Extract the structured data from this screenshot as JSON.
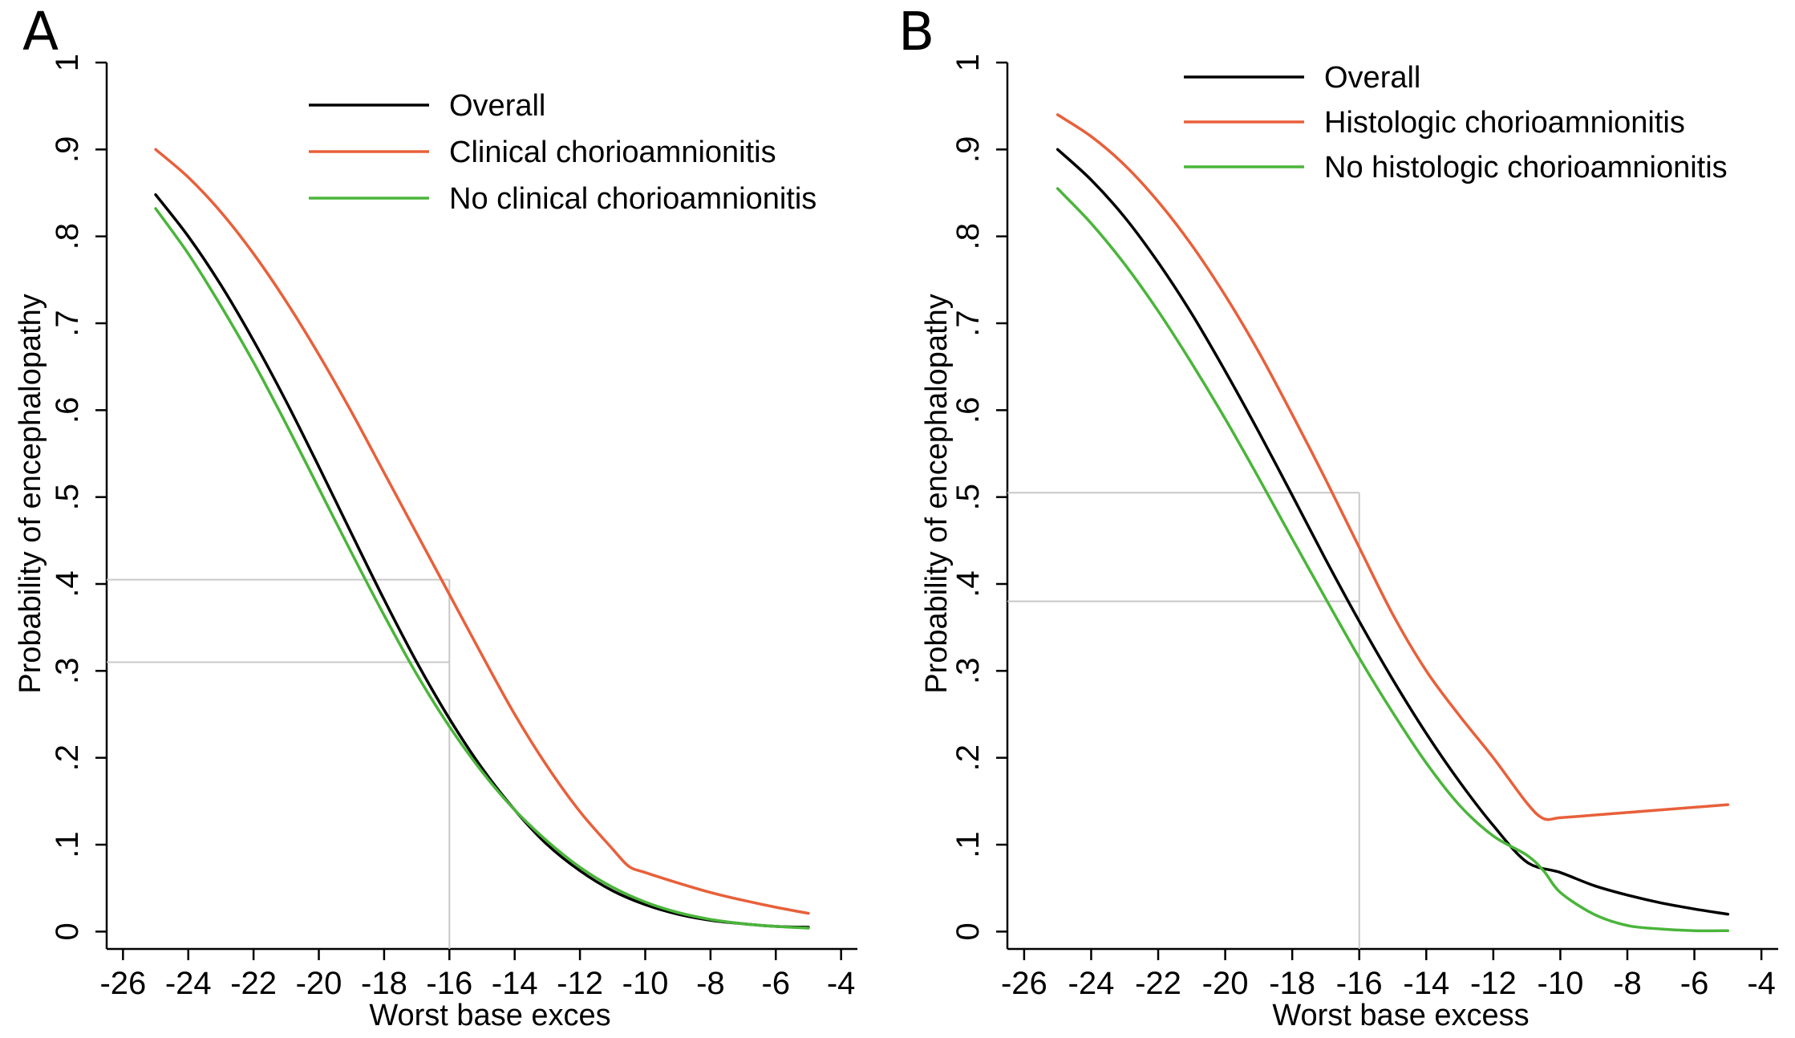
{
  "panels": [
    {
      "letter": "A"
    },
    {
      "letter": "B"
    }
  ],
  "chart_data": [
    {
      "type": "line",
      "panel": "A",
      "title": "",
      "xlabel": "Worst base exces",
      "ylabel": "Probability of encephalopathy",
      "xlim": [
        -26.5,
        -3.5
      ],
      "ylim": [
        -0.02,
        1.0
      ],
      "xticks": [
        -26,
        -24,
        -22,
        -20,
        -18,
        -16,
        -14,
        -12,
        -10,
        -8,
        -6,
        -4
      ],
      "xtick_labels": [
        "-26",
        "-24",
        "-22",
        "-20",
        "-18",
        "-16",
        "-14",
        "-12",
        "-10",
        "-8",
        "-6",
        "-4"
      ],
      "yticks": [
        0,
        0.1,
        0.2,
        0.3,
        0.4,
        0.5,
        0.6,
        0.7,
        0.8,
        0.9,
        1
      ],
      "ytick_labels": [
        "0",
        ".1",
        ".2",
        ".3",
        ".4",
        ".5",
        ".6",
        ".7",
        ".8",
        ".9",
        "1"
      ],
      "legend_position": "top-right",
      "reference_lines": {
        "vertical_x": -16,
        "horizontal_y": [
          0.405,
          0.31
        ]
      },
      "series": [
        {
          "name": "Overall",
          "color": "#000000",
          "x": [
            -25,
            -24,
            -23,
            -22,
            -21,
            -20,
            -19,
            -18,
            -17,
            -16,
            -15,
            -14,
            -13,
            -12,
            -11,
            -10,
            -9,
            -8,
            -7,
            -6,
            -5
          ],
          "y": [
            0.848,
            0.8,
            0.744,
            0.68,
            0.61,
            0.535,
            0.458,
            0.382,
            0.31,
            0.245,
            0.188,
            0.14,
            0.1,
            0.07,
            0.047,
            0.031,
            0.02,
            0.013,
            0.009,
            0.006,
            0.005
          ]
        },
        {
          "name": "Clinical chorioamnionitis",
          "color": "#e8603a",
          "x": [
            -25,
            -24,
            -23,
            -22,
            -21,
            -20,
            -19,
            -18,
            -17,
            -16,
            -15,
            -14,
            -13,
            -12,
            -11,
            -10.5,
            -10,
            -9,
            -8,
            -7,
            -6,
            -5
          ],
          "y": [
            0.9,
            0.868,
            0.828,
            0.78,
            0.725,
            0.664,
            0.598,
            0.528,
            0.458,
            0.388,
            0.318,
            0.25,
            0.19,
            0.138,
            0.095,
            0.075,
            0.068,
            0.056,
            0.045,
            0.036,
            0.028,
            0.021
          ]
        },
        {
          "name": "No clinical chorioamnionitis",
          "color": "#4ab53a",
          "x": [
            -25,
            -24,
            -23,
            -22,
            -21,
            -20,
            -19,
            -18,
            -17,
            -16,
            -15,
            -14,
            -13,
            -12,
            -11,
            -10,
            -9,
            -8,
            -7,
            -6,
            -5
          ],
          "y": [
            0.832,
            0.78,
            0.72,
            0.655,
            0.584,
            0.51,
            0.436,
            0.364,
            0.296,
            0.236,
            0.184,
            0.14,
            0.104,
            0.074,
            0.051,
            0.034,
            0.022,
            0.014,
            0.009,
            0.006,
            0.004
          ]
        }
      ]
    },
    {
      "type": "line",
      "panel": "B",
      "title": "",
      "xlabel": "Worst base excess",
      "ylabel": "Probability of encephalopathy",
      "xlim": [
        -26.5,
        -3.5
      ],
      "ylim": [
        -0.02,
        1.0
      ],
      "xticks": [
        -26,
        -24,
        -22,
        -20,
        -18,
        -16,
        -14,
        -12,
        -10,
        -8,
        -6,
        -4
      ],
      "xtick_labels": [
        "-26",
        "-24",
        "-22",
        "-20",
        "-18",
        "-16",
        "-14",
        "-12",
        "-10",
        "-8",
        "-6",
        "-4"
      ],
      "yticks": [
        0,
        0.1,
        0.2,
        0.3,
        0.4,
        0.5,
        0.6,
        0.7,
        0.8,
        0.9,
        1
      ],
      "ytick_labels": [
        "0",
        ".1",
        ".2",
        ".3",
        ".4",
        ".5",
        ".6",
        ".7",
        ".8",
        ".9",
        "1"
      ],
      "legend_position": "top-right",
      "reference_lines": {
        "vertical_x": -16,
        "horizontal_y": [
          0.505,
          0.38
        ]
      },
      "series": [
        {
          "name": "Overall",
          "color": "#000000",
          "x": [
            -25,
            -24,
            -23,
            -22,
            -21,
            -20,
            -19,
            -18,
            -17,
            -16,
            -15,
            -14,
            -13,
            -12,
            -11,
            -10,
            -9,
            -8,
            -7,
            -6,
            -5
          ],
          "y": [
            0.9,
            0.865,
            0.822,
            0.77,
            0.711,
            0.645,
            0.575,
            0.502,
            0.428,
            0.357,
            0.29,
            0.228,
            0.172,
            0.122,
            0.08,
            0.068,
            0.053,
            0.042,
            0.033,
            0.026,
            0.02
          ]
        },
        {
          "name": "Histologic chorioamnionitis",
          "color": "#e8603a",
          "x": [
            -25,
            -24,
            -23,
            -22,
            -21,
            -20,
            -19,
            -18,
            -17,
            -16,
            -15,
            -14,
            -13,
            -12,
            -11,
            -10.5,
            -10,
            -9,
            -8,
            -7,
            -6,
            -5
          ],
          "y": [
            0.94,
            0.915,
            0.882,
            0.84,
            0.79,
            0.732,
            0.667,
            0.595,
            0.52,
            0.442,
            0.365,
            0.3,
            0.248,
            0.2,
            0.148,
            0.13,
            0.131,
            0.134,
            0.137,
            0.14,
            0.143,
            0.146
          ]
        },
        {
          "name": "No histologic chorioamnionitis",
          "color": "#4ab53a",
          "x": [
            -25,
            -24,
            -23,
            -22,
            -21,
            -20,
            -19,
            -18,
            -17,
            -16,
            -15,
            -14,
            -13,
            -12,
            -11,
            -10.5,
            -10,
            -9,
            -8,
            -7,
            -6,
            -5
          ],
          "y": [
            0.855,
            0.815,
            0.768,
            0.714,
            0.654,
            0.59,
            0.522,
            0.452,
            0.383,
            0.315,
            0.252,
            0.194,
            0.145,
            0.11,
            0.088,
            0.07,
            0.045,
            0.02,
            0.007,
            0.003,
            0.001,
            0.001
          ]
        }
      ]
    }
  ]
}
